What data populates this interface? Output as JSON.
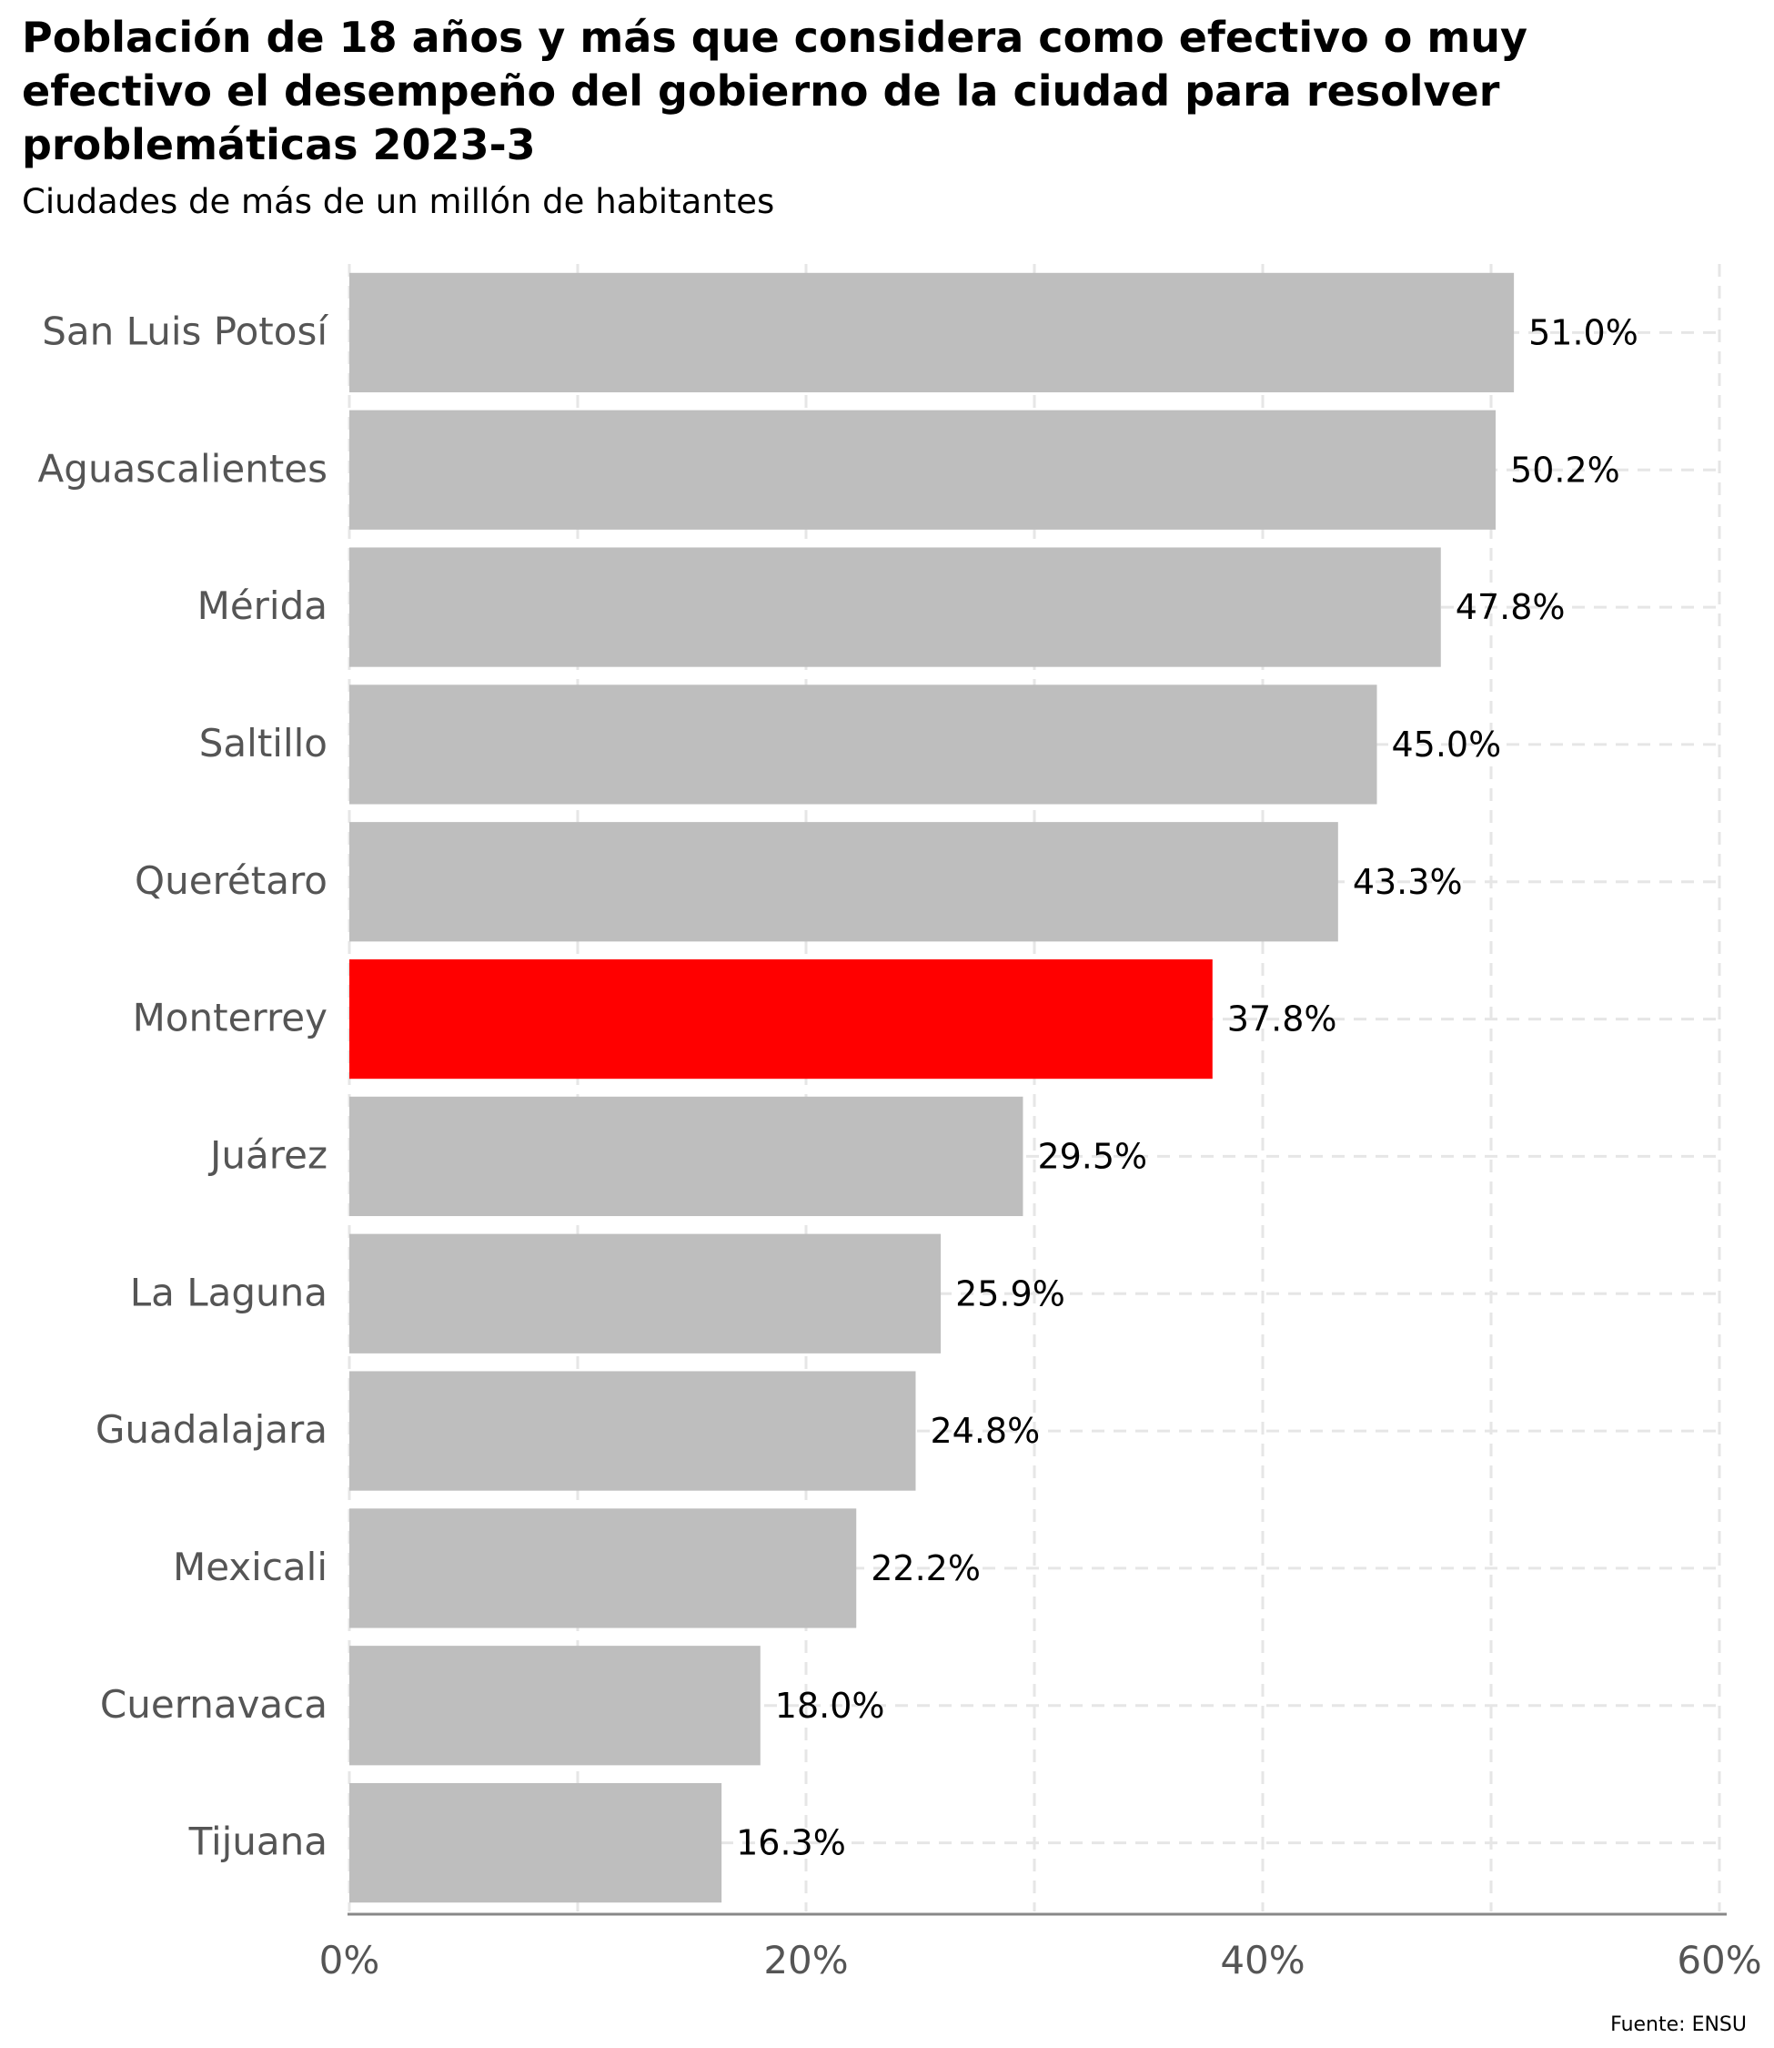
{
  "chart_data": {
    "type": "bar",
    "orientation": "horizontal",
    "title": "Población de 18 años y más que considera como efectivo o muy efectivo el desempeño del gobierno de la ciudad para resolver problemáticas 2023-3",
    "subtitle": "Ciudades de más de un millón de habitantes",
    "caption": "Fuente: ENSU",
    "categories": [
      "San Luis Potosí",
      "Aguascalientes",
      "Mérida",
      "Saltillo",
      "Querétaro",
      "Monterrey",
      "Juárez",
      "La Laguna",
      "Guadalajara",
      "Mexicali",
      "Cuernavaca",
      "Tijuana"
    ],
    "values": [
      51.0,
      50.2,
      47.8,
      45.0,
      43.3,
      37.8,
      29.5,
      25.9,
      24.8,
      22.2,
      18.0,
      16.3
    ],
    "value_labels": [
      "51.0%",
      "50.2%",
      "47.8%",
      "45.0%",
      "43.3%",
      "37.8%",
      "29.5%",
      "25.9%",
      "24.8%",
      "22.2%",
      "18.0%",
      "16.3%"
    ],
    "highlight": "Monterrey",
    "xlim": [
      0,
      60
    ],
    "x_ticks": [
      0,
      20,
      40,
      60
    ],
    "x_tick_labels": [
      "0%",
      "20%",
      "40%",
      "60%"
    ],
    "grid": "dashed vertical",
    "colors": {
      "bar": "#bebebe",
      "highlight": "#ff0000",
      "grid": "#e6e6e6",
      "axis": "#888888",
      "category_label": "#555555",
      "tick_label": "#555555"
    }
  }
}
